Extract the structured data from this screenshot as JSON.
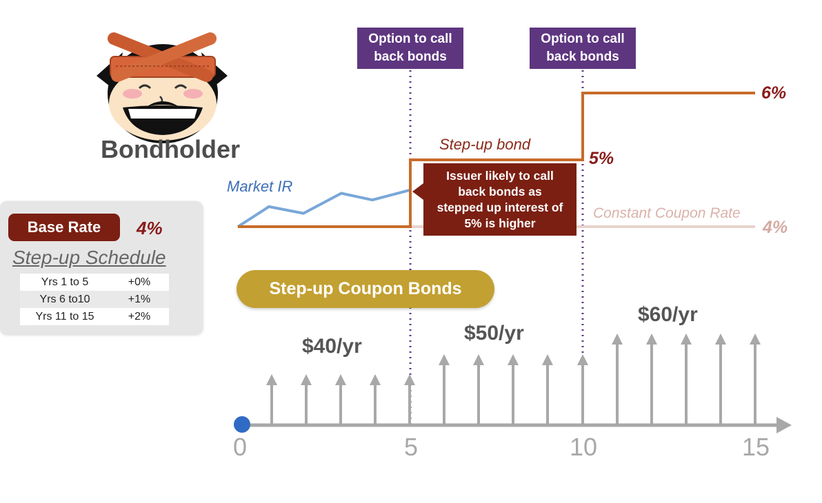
{
  "call_options": [
    {
      "line1": "Option to call",
      "line2": "back bonds"
    },
    {
      "line1": "Option to call",
      "line2": "back bonds"
    }
  ],
  "bondholder_label": "Bondholder",
  "base_rate": {
    "label": "Base Rate",
    "value": "4%"
  },
  "schedule": {
    "title": "Step-up Schedule",
    "rows": [
      {
        "years": "Yrs 1 to 5",
        "step": "+0%"
      },
      {
        "years": "Yrs 6 to10",
        "step": "+1%"
      },
      {
        "years": "Yrs 11 to 15",
        "step": "+2%"
      }
    ]
  },
  "chart_labels": {
    "market_ir": "Market IR",
    "stepup_bond": "Step-up bond",
    "constant_coupon": "Constant Coupon Rate",
    "rate_6": "6%",
    "rate_5": "5%",
    "rate_4": "4%"
  },
  "callout_lines": [
    "Issuer likely to call",
    "back bonds as",
    "stepped up interest of",
    "5% is higher"
  ],
  "step_up_title": "Step-up Coupon Bonds",
  "payments": {
    "p1": "$40/yr",
    "p2": "$50/yr",
    "p3": "$60/yr"
  },
  "axis_ticks": [
    "0",
    "5",
    "10",
    "15"
  ],
  "colors": {
    "call_box": "#5e3680",
    "stepup_line": "#c86b2a",
    "market_line": "#79a7d8",
    "constant_line": "#e8d3cd",
    "callout": "#7b1f12",
    "pill_gold": "#c3a032",
    "arrow_gray": "#a8a8a8",
    "start_dot": "#2f6bc5"
  },
  "chart_data": {
    "type": "line",
    "x": [
      0,
      1,
      2,
      3,
      4,
      5,
      5,
      10,
      10,
      15
    ],
    "series": [
      {
        "name": "Step-up bond",
        "x": [
          0,
          5,
          5,
          10,
          10,
          15
        ],
        "values": [
          4,
          4,
          5,
          5,
          6,
          6
        ]
      },
      {
        "name": "Constant Coupon Rate",
        "x": [
          0,
          15
        ],
        "values": [
          4,
          4
        ]
      },
      {
        "name": "Market IR",
        "x": [
          0,
          0.9,
          1.9,
          3,
          3.9,
          5
        ],
        "values": [
          4,
          4.3,
          4.2,
          4.5,
          4.4,
          4.55
        ]
      }
    ],
    "coupon_payments": {
      "years": [
        1,
        2,
        3,
        4,
        5,
        6,
        7,
        8,
        9,
        10,
        11,
        12,
        13,
        14,
        15
      ],
      "amounts": [
        40,
        40,
        40,
        40,
        40,
        50,
        50,
        50,
        50,
        50,
        60,
        60,
        60,
        60,
        60
      ]
    },
    "call_options_at_years": [
      5,
      10
    ],
    "xlim": [
      0,
      15
    ]
  }
}
